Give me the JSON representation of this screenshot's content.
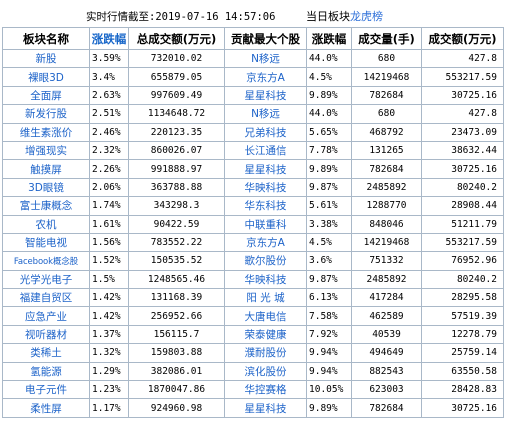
{
  "header": {
    "time_label": "实时行情截至:2019-07-16 14:57:06",
    "tag_prefix": "当日板块",
    "tag_dragon": "龙虎榜"
  },
  "columns": [
    "板块名称",
    "涨跌幅",
    "总成交额(万元)",
    "贡献最大个股",
    "涨跌幅",
    "成交量(手)",
    "成交额(万元)"
  ],
  "rows": [
    {
      "sector": "新股",
      "pct": "3.59%",
      "amount": "732010.02",
      "stock": "N移远",
      "stock_pct": "44.0%",
      "volume": "680",
      "turnover": "427.8"
    },
    {
      "sector": "裸眼3D",
      "pct": "3.4%",
      "amount": "655879.05",
      "stock": "京东方A",
      "stock_pct": "4.5%",
      "volume": "14219468",
      "turnover": "553217.59"
    },
    {
      "sector": "全面屏",
      "pct": "2.63%",
      "amount": "997609.49",
      "stock": "星星科技",
      "stock_pct": "9.89%",
      "volume": "782684",
      "turnover": "30725.16"
    },
    {
      "sector": "新发行股",
      "pct": "2.51%",
      "amount": "1134648.72",
      "stock": "N移远",
      "stock_pct": "44.0%",
      "volume": "680",
      "turnover": "427.8"
    },
    {
      "sector": "维生素涨价",
      "pct": "2.46%",
      "amount": "220123.35",
      "stock": "兄弟科技",
      "stock_pct": "5.65%",
      "volume": "468792",
      "turnover": "23473.09"
    },
    {
      "sector": "增强现实",
      "pct": "2.32%",
      "amount": "860026.07",
      "stock": "长江通信",
      "stock_pct": "7.78%",
      "volume": "131265",
      "turnover": "38632.44"
    },
    {
      "sector": "触摸屏",
      "pct": "2.26%",
      "amount": "991888.97",
      "stock": "星星科技",
      "stock_pct": "9.89%",
      "volume": "782684",
      "turnover": "30725.16"
    },
    {
      "sector": "3D眼镜",
      "pct": "2.06%",
      "amount": "363788.88",
      "stock": "华映科技",
      "stock_pct": "9.87%",
      "volume": "2485892",
      "turnover": "80240.2"
    },
    {
      "sector": "富士康概念",
      "pct": "1.74%",
      "amount": "343298.3",
      "stock": "华东科技",
      "stock_pct": "5.61%",
      "volume": "1288770",
      "turnover": "28908.44"
    },
    {
      "sector": "农机",
      "pct": "1.61%",
      "amount": "90422.59",
      "stock": "中联重科",
      "stock_pct": "3.38%",
      "volume": "848046",
      "turnover": "51211.79"
    },
    {
      "sector": "智能电视",
      "pct": "1.56%",
      "amount": "783552.22",
      "stock": "京东方A",
      "stock_pct": "4.5%",
      "volume": "14219468",
      "turnover": "553217.59"
    },
    {
      "sector": "Facebook概念股",
      "pct": "1.52%",
      "amount": "150535.52",
      "stock": "歌尔股份",
      "stock_pct": "3.6%",
      "volume": "751332",
      "turnover": "76952.96"
    },
    {
      "sector": "光学光电子",
      "pct": "1.5%",
      "amount": "1248565.46",
      "stock": "华映科技",
      "stock_pct": "9.87%",
      "volume": "2485892",
      "turnover": "80240.2"
    },
    {
      "sector": "福建自贸区",
      "pct": "1.42%",
      "amount": "131168.39",
      "stock": "阳 光 城",
      "stock_pct": "6.13%",
      "volume": "417284",
      "turnover": "28295.58"
    },
    {
      "sector": "应急产业",
      "pct": "1.42%",
      "amount": "256952.66",
      "stock": "大唐电信",
      "stock_pct": "7.58%",
      "volume": "462589",
      "turnover": "57519.39"
    },
    {
      "sector": "视听器材",
      "pct": "1.37%",
      "amount": "156115.7",
      "stock": "荣泰健康",
      "stock_pct": "7.92%",
      "volume": "40539",
      "turnover": "12278.79"
    },
    {
      "sector": "类稀土",
      "pct": "1.32%",
      "amount": "159803.88",
      "stock": "濮耐股份",
      "stock_pct": "9.94%",
      "volume": "494649",
      "turnover": "25759.14"
    },
    {
      "sector": "氢能源",
      "pct": "1.29%",
      "amount": "382086.01",
      "stock": "滨化股份",
      "stock_pct": "9.94%",
      "volume": "882543",
      "turnover": "63550.58"
    },
    {
      "sector": "电子元件",
      "pct": "1.23%",
      "amount": "1870047.86",
      "stock": "华控赛格",
      "stock_pct": "10.05%",
      "volume": "623003",
      "turnover": "28428.83"
    },
    {
      "sector": "柔性屏",
      "pct": "1.17%",
      "amount": "924960.98",
      "stock": "星星科技",
      "stock_pct": "9.89%",
      "volume": "782684",
      "turnover": "30725.16"
    }
  ]
}
